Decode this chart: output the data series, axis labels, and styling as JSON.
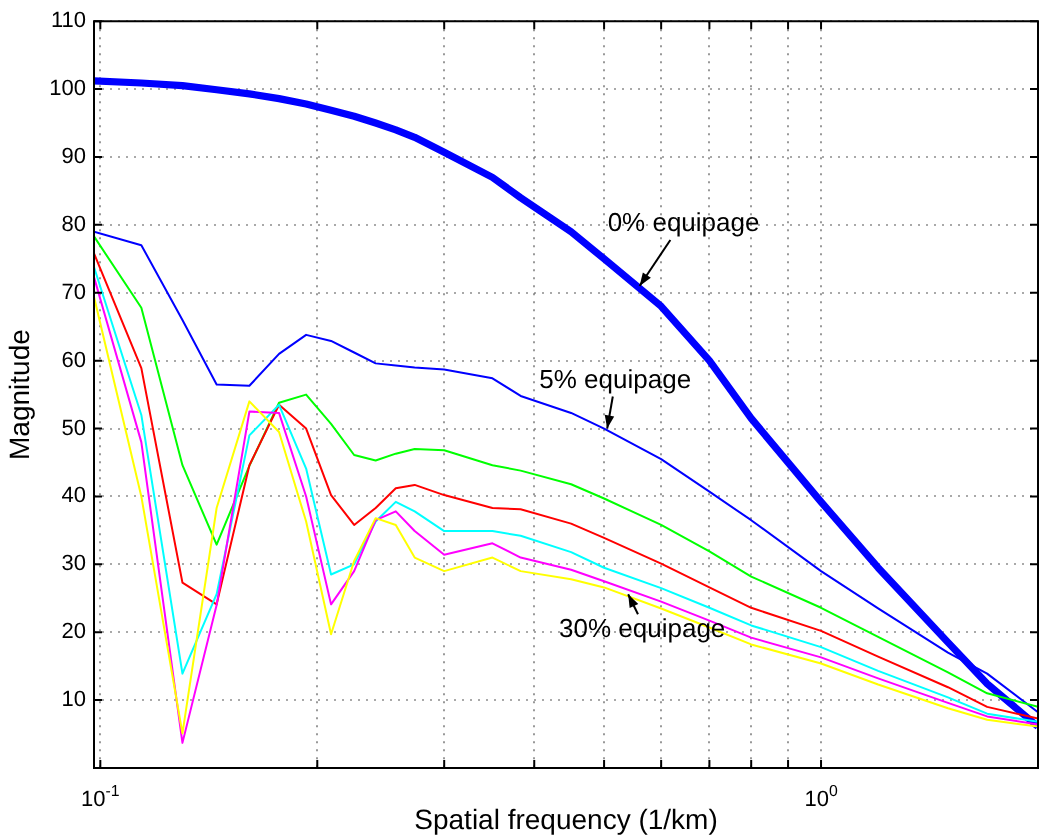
{
  "chart_data": {
    "type": "line",
    "xlabel": "Spatial frequency (1/km)",
    "ylabel": "Magnitude",
    "x": [
      0.098,
      0.114,
      0.13,
      0.145,
      0.161,
      0.177,
      0.193,
      0.209,
      0.225,
      0.241,
      0.257,
      0.273,
      0.3,
      0.35,
      0.383,
      0.45,
      0.5,
      0.6,
      0.7,
      0.8,
      1.0,
      1.2,
      1.5,
      1.7,
      2.0
    ],
    "series": [
      {
        "color": "#0000ff",
        "values": [
          101.2,
          100.9,
          100.5,
          99.9,
          99.3,
          98.6,
          97.8,
          96.9,
          96.0,
          95.0,
          94.0,
          92.9,
          90.7,
          87.0,
          84.0,
          79.0,
          75.0,
          68.0,
          60.0,
          51.5,
          39.2,
          29.5,
          18.5,
          12.4,
          6.1
        ]
      },
      {
        "color": "#0000ff",
        "values": [
          79,
          77,
          66,
          56.5,
          56.3,
          61,
          63.8,
          62.9,
          61.2,
          59.6,
          59.3,
          59.0,
          58.7,
          57.4,
          54.8,
          52.3,
          50,
          45.5,
          40.7,
          36.5,
          29,
          23.5,
          17,
          13.9,
          8.2
        ]
      },
      {
        "color": "#00ff00",
        "values": [
          78.3,
          67.8,
          44.6,
          32.9,
          44.5,
          53.8,
          55,
          50.7,
          46.1,
          45.3,
          46.3,
          47,
          46.8,
          44.6,
          43.8,
          41.8,
          39.7,
          35.8,
          31.9,
          28.2,
          23.6,
          19.3,
          14.1,
          11,
          9
        ]
      },
      {
        "color": "#ff0000",
        "values": [
          75.8,
          58.9,
          27.3,
          24.1,
          44.6,
          53.5,
          50,
          40.2,
          35.8,
          38.3,
          41.2,
          41.7,
          40.2,
          38.3,
          38.1,
          36,
          33.9,
          30.1,
          26.6,
          23.6,
          20.2,
          16.4,
          11.9,
          9,
          7.3
        ]
      },
      {
        "color": "#00ffff",
        "values": [
          73.8,
          52,
          13.9,
          25.6,
          49,
          53.5,
          44.1,
          28.5,
          30,
          36.3,
          39.2,
          37.8,
          34.9,
          34.9,
          34.2,
          31.8,
          29.5,
          26.5,
          23.6,
          21,
          17.8,
          14.3,
          10.4,
          8,
          6.8
        ]
      },
      {
        "color": "#ff00ff",
        "values": [
          72.3,
          48,
          3.7,
          24,
          52.5,
          52.3,
          40,
          24.1,
          29,
          36.5,
          37.8,
          34.9,
          31.4,
          33.1,
          31,
          29.2,
          27.5,
          24.5,
          21.7,
          19.2,
          16.3,
          13.2,
          9.6,
          7.6,
          6.4
        ]
      },
      {
        "color": "#ffff00",
        "values": [
          69.4,
          40,
          5.1,
          38.3,
          54,
          49.5,
          36.3,
          19.7,
          30.5,
          36.8,
          35.8,
          31,
          29,
          31,
          29,
          27.8,
          26.6,
          23.5,
          20.7,
          18.2,
          15.4,
          12.3,
          8.8,
          7.1,
          6.1
        ]
      }
    ],
    "log": "x",
    "xlim": [
      0.098,
      2.0
    ],
    "xticks": [
      {
        "value": 0.1,
        "label": "10$^{-1}$"
      },
      {
        "value": 0.2,
        "label": null
      },
      {
        "value": 0.3,
        "label": null
      },
      {
        "value": 0.4,
        "label": null
      },
      {
        "value": 0.5,
        "label": null
      },
      {
        "value": 0.6,
        "label": null
      },
      {
        "value": 0.7,
        "label": null
      },
      {
        "value": 0.8,
        "label": null
      },
      {
        "value": 0.9,
        "label": null
      },
      {
        "value": 1,
        "label": "10$^{0}$"
      },
      {
        "value": 2,
        "label": null
      }
    ],
    "ylim": [
      0,
      110
    ],
    "yticks": [
      10,
      20,
      30,
      40,
      50,
      60,
      70,
      80,
      90,
      100,
      110
    ],
    "grid": true,
    "legend": false,
    "marker": "none",
    "line_style": "solid",
    "annotations": [
      {
        "text": "0% equipage",
        "x": 0.56,
        "y": 71
      },
      {
        "text": "5% equipage",
        "x": 0.505,
        "y": 50
      },
      {
        "text": "30% equipage",
        "x": 0.54,
        "y": 25.6
      }
    ]
  }
}
